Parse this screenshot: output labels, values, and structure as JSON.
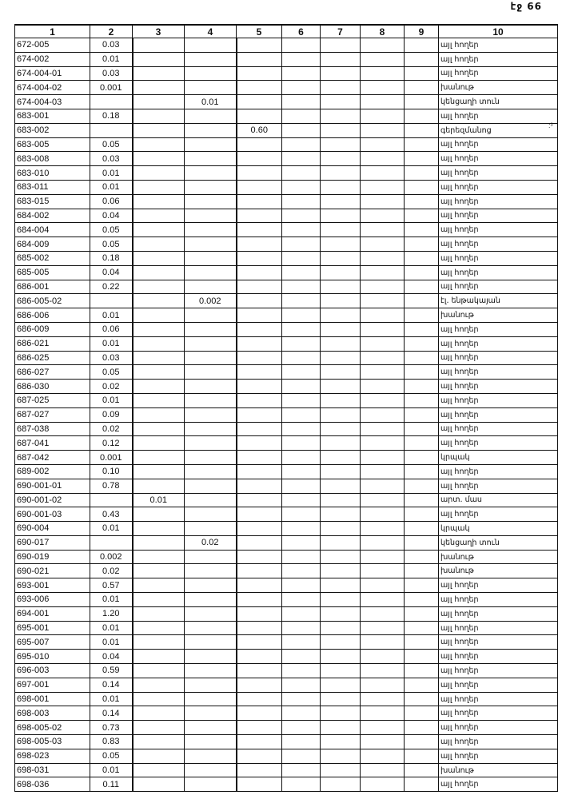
{
  "page_number": "էջ 66",
  "margin_mark": ":³",
  "columns": [
    "1",
    "2",
    "3",
    "4",
    "5",
    "6",
    "7",
    "8",
    "9",
    "10"
  ],
  "rows": [
    [
      "672-005",
      "0.03",
      "",
      "",
      "",
      "այլ հողեր"
    ],
    [
      "674-002",
      "0.01",
      "",
      "",
      "",
      "այլ հողեր"
    ],
    [
      "674-004-01",
      "0.03",
      "",
      "",
      "",
      "այլ հողեր"
    ],
    [
      "674-004-02",
      "0.001",
      "",
      "",
      "",
      "խանութ"
    ],
    [
      "674-004-03",
      "",
      "",
      "0.01",
      "",
      "կենցաղի տուն"
    ],
    [
      "683-001",
      "0.18",
      "",
      "",
      "",
      "այլ հողեր"
    ],
    [
      "683-002",
      "",
      "",
      "",
      "0.60",
      "գերեզմանոց"
    ],
    [
      "683-005",
      "0.05",
      "",
      "",
      "",
      "այլ հողեր"
    ],
    [
      "683-008",
      "0.03",
      "",
      "",
      "",
      "այլ հողեր"
    ],
    [
      "683-010",
      "0.01",
      "",
      "",
      "",
      "այլ հողեր"
    ],
    [
      "683-011",
      "0.01",
      "",
      "",
      "",
      "այլ հողեր"
    ],
    [
      "683-015",
      "0.06",
      "",
      "",
      "",
      "այլ հողեր"
    ],
    [
      "684-002",
      "0.04",
      "",
      "",
      "",
      "այլ հողեր"
    ],
    [
      "684-004",
      "0.05",
      "",
      "",
      "",
      "այլ հողեր"
    ],
    [
      "684-009",
      "0.05",
      "",
      "",
      "",
      "այլ հողեր"
    ],
    [
      "685-002",
      "0.18",
      "",
      "",
      "",
      "այլ հողեր"
    ],
    [
      "685-005",
      "0.04",
      "",
      "",
      "",
      "այլ հողեր"
    ],
    [
      "686-001",
      "0.22",
      "",
      "",
      "",
      "այլ հողեր"
    ],
    [
      "686-005-02",
      "",
      "",
      "0.002",
      "",
      "էլ. ենթակայան"
    ],
    [
      "686-006",
      "0.01",
      "",
      "",
      "",
      "խանութ"
    ],
    [
      "686-009",
      "0.06",
      "",
      "",
      "",
      "այլ հողեր"
    ],
    [
      "686-021",
      "0.01",
      "",
      "",
      "",
      "այլ հողեր"
    ],
    [
      "686-025",
      "0.03",
      "",
      "",
      "",
      "այլ հողեր"
    ],
    [
      "686-027",
      "0.05",
      "",
      "",
      "",
      "այլ հողեր"
    ],
    [
      "686-030",
      "0.02",
      "",
      "",
      "",
      "այլ հողեր"
    ],
    [
      "687-025",
      "0.01",
      "",
      "",
      "",
      "այլ հողեր"
    ],
    [
      "687-027",
      "0.09",
      "",
      "",
      "",
      "այլ հողեր"
    ],
    [
      "687-038",
      "0.02",
      "",
      "",
      "",
      "այլ հողեր"
    ],
    [
      "687-041",
      "0.12",
      "",
      "",
      "",
      "այլ հողեր"
    ],
    [
      "687-042",
      "0.001",
      "",
      "",
      "",
      "կրպակ"
    ],
    [
      "689-002",
      "0.10",
      "",
      "",
      "",
      "այլ հողեր"
    ],
    [
      "690-001-01",
      "0.78",
      "",
      "",
      "",
      "այլ հողեր"
    ],
    [
      "690-001-02",
      "",
      "0.01",
      "",
      "",
      "արտ. մաս"
    ],
    [
      "690-001-03",
      "0.43",
      "",
      "",
      "",
      "այլ հողեր"
    ],
    [
      "690-004",
      "0.01",
      "",
      "",
      "",
      "կրպակ"
    ],
    [
      "690-017",
      "",
      "",
      "0.02",
      "",
      "կենցաղի տուն"
    ],
    [
      "690-019",
      "0.002",
      "",
      "",
      "",
      "խանութ"
    ],
    [
      "690-021",
      "0.02",
      "",
      "",
      "",
      "խանութ"
    ],
    [
      "693-001",
      "0.57",
      "",
      "",
      "",
      "այլ հողեր"
    ],
    [
      "693-006",
      "0.01",
      "",
      "",
      "",
      "այլ հողեր"
    ],
    [
      "694-001",
      "1.20",
      "",
      "",
      "",
      "այլ հողեր"
    ],
    [
      "695-001",
      "0.01",
      "",
      "",
      "",
      "այլ հողեր"
    ],
    [
      "695-007",
      "0.01",
      "",
      "",
      "",
      "այլ հողեր"
    ],
    [
      "695-010",
      "0.04",
      "",
      "",
      "",
      "այլ հողեր"
    ],
    [
      "696-003",
      "0.59",
      "",
      "",
      "",
      "այլ հողեր"
    ],
    [
      "697-001",
      "0.14",
      "",
      "",
      "",
      "այլ հողեր"
    ],
    [
      "698-001",
      "0.01",
      "",
      "",
      "",
      "այլ հողեր"
    ],
    [
      "698-003",
      "0.14",
      "",
      "",
      "",
      "այլ հողեր"
    ],
    [
      "698-005-02",
      "0.73",
      "",
      "",
      "",
      "այլ հողեր"
    ],
    [
      "698-005-03",
      "0.83",
      "",
      "",
      "",
      "այլ հողեր"
    ],
    [
      "698-023",
      "0.05",
      "",
      "",
      "",
      "այլ հողեր"
    ],
    [
      "698-031",
      "0.01",
      "",
      "",
      "",
      "խանութ"
    ],
    [
      "698-036",
      "0.11",
      "",
      "",
      "",
      "այլ հողեր"
    ]
  ]
}
